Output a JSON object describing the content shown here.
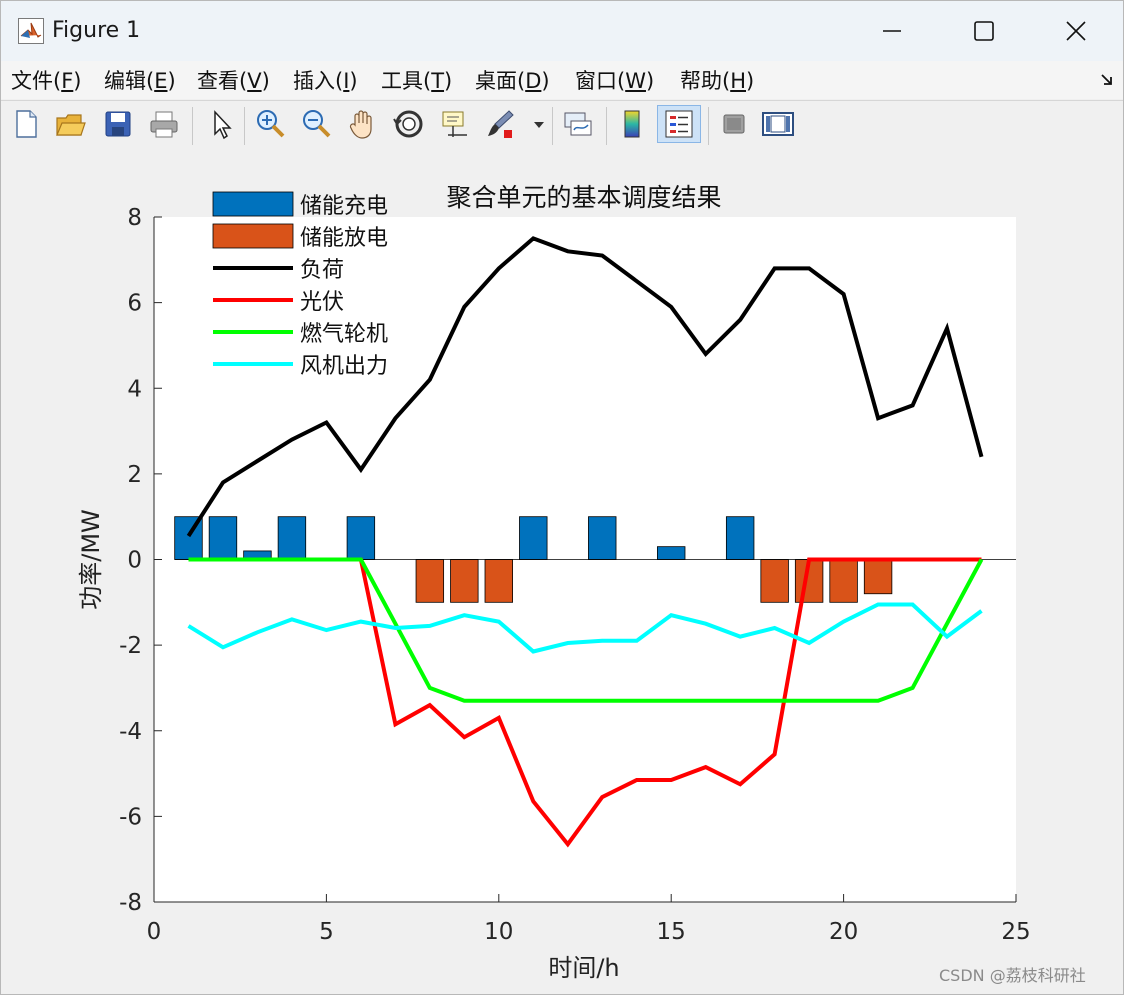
{
  "window": {
    "title": "Figure 1",
    "controls": [
      "minimize",
      "maximize",
      "close"
    ]
  },
  "menu": [
    {
      "text": "文件(",
      "key": "F",
      "end": ")"
    },
    {
      "text": "编辑(",
      "key": "E",
      "end": ")"
    },
    {
      "text": "查看(",
      "key": "V",
      "end": ")"
    },
    {
      "text": "插入(",
      "key": "I",
      "end": ")"
    },
    {
      "text": "工具(",
      "key": "T",
      "end": ")"
    },
    {
      "text": "桌面(",
      "key": "D",
      "end": ")"
    },
    {
      "text": "窗口(",
      "key": "W",
      "end": ")"
    },
    {
      "text": "帮助(",
      "key": "H",
      "end": ")"
    }
  ],
  "toolbar": [
    "new-figure-icon",
    "open-file-icon",
    "save-icon",
    "print-icon",
    "pointer-icon",
    "zoom-in-icon",
    "zoom-out-icon",
    "pan-hand-icon",
    "rotate-3d-icon",
    "data-cursor-icon",
    "brush-icon",
    "link-plot-icon",
    "colorbar-icon",
    "legend-icon",
    "hide-plot-tools-icon",
    "show-plot-tools-icon"
  ],
  "watermark": "CSDN @荔枝科研社",
  "chart_data": {
    "type": "bar",
    "title": "聚合单元的基本调度结果",
    "xlabel": "时间/h",
    "ylabel": "功率/MW",
    "xlim": [
      0,
      25
    ],
    "ylim": [
      -8,
      8
    ],
    "xticks": [
      0,
      5,
      10,
      15,
      20,
      25
    ],
    "yticks": [
      -8,
      -6,
      -4,
      -2,
      0,
      2,
      4,
      6,
      8
    ],
    "grid": false,
    "legend_position": "top-left",
    "x": [
      1,
      2,
      3,
      4,
      5,
      6,
      7,
      8,
      9,
      10,
      11,
      12,
      13,
      14,
      15,
      16,
      17,
      18,
      19,
      20,
      21,
      22,
      23,
      24
    ],
    "bar_series": [
      {
        "name": "储能充电",
        "color": "#0072BD",
        "values": [
          1,
          1,
          0.2,
          1,
          0,
          1,
          0,
          0,
          0,
          0,
          1,
          0,
          1,
          0,
          0.3,
          0,
          1,
          0,
          0,
          0,
          0,
          0,
          0,
          0
        ]
      },
      {
        "name": "储能放电",
        "color": "#D95319",
        "values": [
          0,
          0,
          0,
          0,
          0,
          0,
          0,
          -1,
          -1,
          -1,
          0,
          0,
          0,
          0,
          0,
          0,
          0,
          -1,
          -1,
          -1,
          -0.8,
          0,
          0,
          0
        ]
      }
    ],
    "line_series": [
      {
        "name": "负荷",
        "color": "#000000",
        "values": [
          0.55,
          1.8,
          2.3,
          2.8,
          3.2,
          2.1,
          3.3,
          4.2,
          5.9,
          6.8,
          7.5,
          7.2,
          7.1,
          6.5,
          5.9,
          4.8,
          5.6,
          6.8,
          6.8,
          6.2,
          3.3,
          3.6,
          5.4,
          2.4
        ]
      },
      {
        "name": "光伏",
        "color": "#FF0000",
        "values": [
          0,
          0,
          0,
          0,
          0,
          0,
          -3.85,
          -3.4,
          -4.15,
          -3.7,
          -5.65,
          -6.65,
          -5.55,
          -5.15,
          -5.15,
          -4.85,
          -5.25,
          -4.55,
          0,
          0,
          0,
          0,
          0,
          0
        ]
      },
      {
        "name": "燃气轮机",
        "color": "#00FF00",
        "values": [
          0,
          0,
          0,
          0,
          0,
          0,
          -1.5,
          -3.0,
          -3.3,
          -3.3,
          -3.3,
          -3.3,
          -3.3,
          -3.3,
          -3.3,
          -3.3,
          -3.3,
          -3.3,
          -3.3,
          -3.3,
          -3.3,
          -3.0,
          -1.5,
          0
        ]
      },
      {
        "name": "风机出力",
        "color": "#00FFFF",
        "values": [
          -1.55,
          -2.05,
          -1.7,
          -1.4,
          -1.65,
          -1.45,
          -1.6,
          -1.55,
          -1.3,
          -1.45,
          -2.15,
          -1.95,
          -1.9,
          -1.9,
          -1.3,
          -1.5,
          -1.8,
          -1.6,
          -1.95,
          -1.45,
          -1.05,
          -1.05,
          -1.8,
          -1.2
        ]
      }
    ]
  }
}
